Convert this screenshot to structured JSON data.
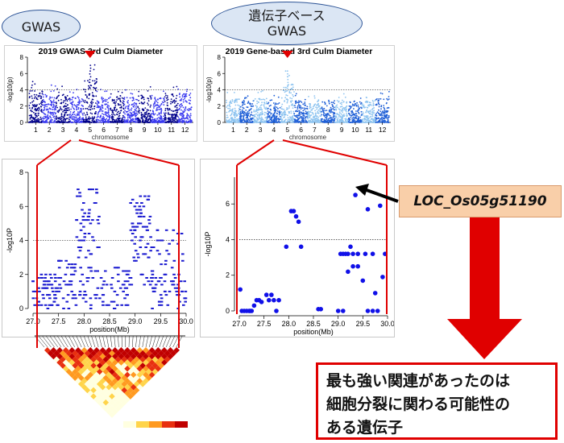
{
  "labels": {
    "gwas": "GWAS",
    "gene_based_line1": "遺伝子ベース",
    "gene_based_line2": "GWAS",
    "gene": "LOC_Os05g51190",
    "conclusion_lines": [
      "最も強い関連があったのは",
      "細胞分裂に関わる可能性の",
      "ある遺伝子"
    ]
  },
  "colors": {
    "highlight": "#e00000",
    "gwas_series_dark": "#00008b",
    "gwas_series_light": "#3a3af0",
    "gene_series_dark": "#1f5fd6",
    "gene_series_light": "#8ec4f0",
    "callout_fill": "#f9cfa9"
  },
  "chart_data": [
    {
      "type": "scatter",
      "kind": "manhattan",
      "title": "2019 GWAS 3rd Culm Diameter",
      "xlabel": "chromosome",
      "ylabel": "-log10(p)",
      "categories": [
        "1",
        "2",
        "3",
        "4",
        "5",
        "6",
        "7",
        "8",
        "9",
        "10",
        "11",
        "12"
      ],
      "ylim": [
        0,
        8
      ],
      "yticks": [
        0,
        2,
        4,
        6,
        8
      ],
      "threshold": 4,
      "peak": {
        "chromosome": "5",
        "value": 7.1
      },
      "chromosome_max": [
        5.2,
        4.6,
        4.6,
        4.2,
        7.1,
        4.3,
        4.4,
        4.1,
        4.5,
        4.1,
        4.6,
        4.8
      ]
    },
    {
      "type": "scatter",
      "kind": "manhattan",
      "title": "2019 Gene-based 3rd Culm Diameter",
      "xlabel": "chromosome",
      "ylabel": "-log10(p)",
      "categories": [
        "1",
        "2",
        "3",
        "4",
        "5",
        "6",
        "7",
        "8",
        "9",
        "10",
        "11",
        "12"
      ],
      "ylim": [
        0,
        8
      ],
      "yticks": [
        0,
        2,
        4,
        6,
        8
      ],
      "threshold": 4,
      "peak": {
        "chromosome": "5",
        "value": 6.4
      },
      "chromosome_max": [
        3.8,
        3.6,
        3.9,
        3.3,
        6.4,
        3.6,
        3.5,
        3.4,
        3.7,
        3.4,
        3.6,
        3.9
      ]
    },
    {
      "type": "scatter",
      "title": "",
      "xlabel": "position(Mb)",
      "ylabel": "-log10P",
      "xlim": [
        27.0,
        30.0
      ],
      "xticks": [
        27.0,
        27.5,
        28.0,
        28.5,
        29.0,
        29.5,
        30.0
      ],
      "ylim": [
        0,
        8
      ],
      "yticks": [
        0,
        2,
        4,
        6,
        8
      ],
      "threshold": 4,
      "clusters": [
        {
          "x": [
            27.0,
            27.45
          ],
          "y": [
            0.0,
            2.0
          ],
          "n": 60
        },
        {
          "x": [
            27.45,
            27.85
          ],
          "y": [
            0.0,
            2.9
          ],
          "n": 45
        },
        {
          "x": [
            27.85,
            28.3
          ],
          "y": [
            3.0,
            7.1
          ],
          "n": 55
        },
        {
          "x": [
            27.9,
            28.3
          ],
          "y": [
            0.0,
            2.6
          ],
          "n": 30
        },
        {
          "x": [
            28.3,
            28.9
          ],
          "y": [
            0.0,
            2.5
          ],
          "n": 50
        },
        {
          "x": [
            28.9,
            29.3
          ],
          "y": [
            4.5,
            6.7
          ],
          "n": 40
        },
        {
          "x": [
            28.9,
            30.0
          ],
          "y": [
            1.0,
            4.9
          ],
          "n": 80
        },
        {
          "x": [
            29.3,
            30.0
          ],
          "y": [
            0.0,
            2.2
          ],
          "n": 40
        }
      ]
    },
    {
      "type": "scatter",
      "title": "",
      "xlabel": "position(Mb)",
      "ylabel": "-log10P",
      "xlim": [
        27.0,
        30.0
      ],
      "xticks": [
        27.0,
        27.5,
        28.0,
        28.5,
        29.0,
        29.5,
        30.0
      ],
      "ylim": [
        0,
        7.5
      ],
      "yticks": [
        0,
        2,
        4,
        6
      ],
      "threshold": 4,
      "x": [
        27.02,
        27.05,
        27.1,
        27.15,
        27.2,
        27.25,
        27.3,
        27.22,
        27.35,
        27.4,
        27.45,
        27.55,
        27.6,
        27.65,
        27.7,
        27.75,
        27.8,
        27.95,
        28.05,
        28.1,
        28.15,
        28.2,
        28.25,
        28.6,
        28.65,
        29.0,
        29.05,
        29.1,
        29.15,
        29.2,
        29.25,
        29.3,
        29.35,
        29.4,
        29.4,
        29.5,
        29.55,
        29.6,
        29.7,
        29.75,
        29.8,
        29.85,
        29.9,
        29.95,
        29.2,
        29.3,
        29.7,
        29.1,
        29.6
      ],
      "y": [
        1.2,
        0.0,
        0.0,
        0.0,
        0.0,
        0.0,
        0.3,
        0.0,
        0.6,
        0.6,
        0.5,
        0.9,
        0.6,
        0.9,
        0.6,
        0.0,
        0.6,
        3.6,
        5.6,
        5.6,
        5.3,
        5.0,
        3.6,
        0.1,
        0.1,
        0.0,
        3.2,
        3.2,
        3.2,
        3.2,
        3.6,
        3.2,
        6.5,
        2.5,
        3.2,
        1.7,
        3.2,
        5.7,
        3.2,
        1.0,
        0.0,
        5.9,
        1.9,
        3.2,
        2.2,
        2.5,
        0.0,
        0.0,
        0.0
      ],
      "highlight": {
        "x": 29.35,
        "y": 6.5,
        "label": "LOC_Os05g51190"
      }
    },
    {
      "type": "heatmap",
      "kind": "linkage-disequilibrium",
      "title": "",
      "colorscale": [
        "#ffffe0",
        "#ffd44a",
        "#ff9a20",
        "#e83010",
        "#c00000"
      ],
      "legend_label": ""
    }
  ]
}
